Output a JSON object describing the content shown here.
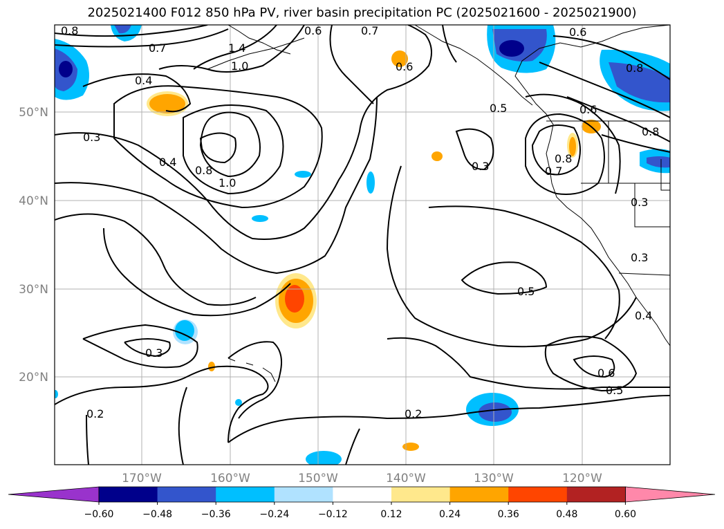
{
  "title": "2025021400 F012 850 hPa PV, river basin precipitation PC (2025021600 - 2025021900)",
  "map": {
    "lon_ticks": [
      "170°W",
      "160°W",
      "150°W",
      "140°W",
      "130°W",
      "120°W"
    ],
    "lat_ticks": [
      "50°N",
      "40°N",
      "30°N",
      "20°N"
    ],
    "contour_labels": [
      "0.8",
      "0.7",
      "1.4",
      "1.0",
      "0.6",
      "0.7",
      "0.6",
      "0.4",
      "0.8",
      "0.6",
      "0.5",
      "0.6",
      "0.3",
      "0.4",
      "0.8",
      "1.0",
      "0.3",
      "0.7",
      "0.8",
      "0.8",
      "0.3",
      "0.3",
      "0.5",
      "0.4",
      "0.3",
      "0.6",
      "0.5",
      "0.2",
      "0.2"
    ]
  },
  "colorbar": {
    "tick_labels": [
      "−0.60",
      "−0.48",
      "−0.36",
      "−0.24",
      "−0.12",
      "0.12",
      "0.24",
      "0.36",
      "0.48",
      "0.60"
    ],
    "colors": [
      "#9933cc",
      "#00008b",
      "#3355cc",
      "#00bfff",
      "#b0e2ff",
      "#ffffff",
      "#ffe88c",
      "#ffa500",
      "#ff4500",
      "#b22222",
      "#ff88aa"
    ]
  }
}
